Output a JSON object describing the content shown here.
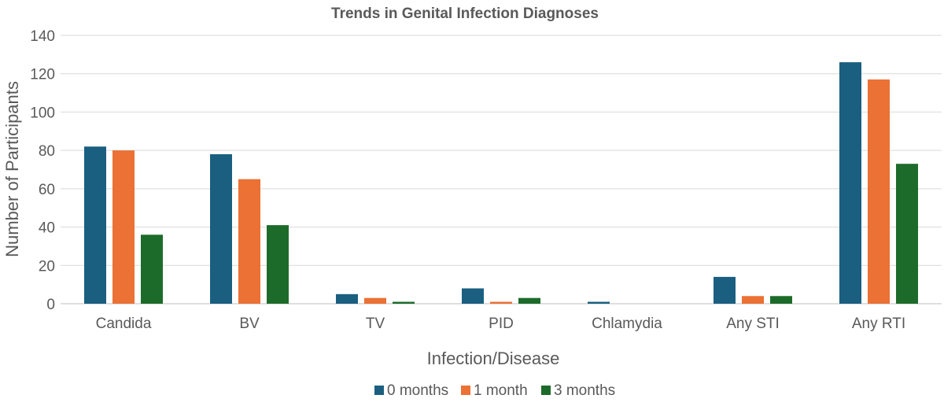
{
  "chart_data": {
    "type": "bar",
    "title": "Trends in Genital Infection Diagnoses",
    "xlabel": "Infection/Disease",
    "ylabel": "Number of Participants",
    "ylim": [
      0,
      140
    ],
    "yticks": [
      0,
      20,
      40,
      60,
      80,
      100,
      120,
      140
    ],
    "grid": true,
    "legend_position": "bottom",
    "categories": [
      "Candida",
      "BV",
      "TV",
      "PID",
      "Chlamydia",
      "Any STI",
      "Any RTI"
    ],
    "series": [
      {
        "name": "0 months",
        "color": "#1a5f80",
        "values": [
          82,
          78,
          5,
          8,
          1,
          14,
          126
        ]
      },
      {
        "name": "1 month",
        "color": "#eb7134",
        "values": [
          80,
          65,
          3,
          1,
          0,
          4,
          117
        ]
      },
      {
        "name": "3 months",
        "color": "#1d6b2a",
        "values": [
          36,
          41,
          1,
          3,
          0,
          4,
          73
        ]
      }
    ]
  }
}
